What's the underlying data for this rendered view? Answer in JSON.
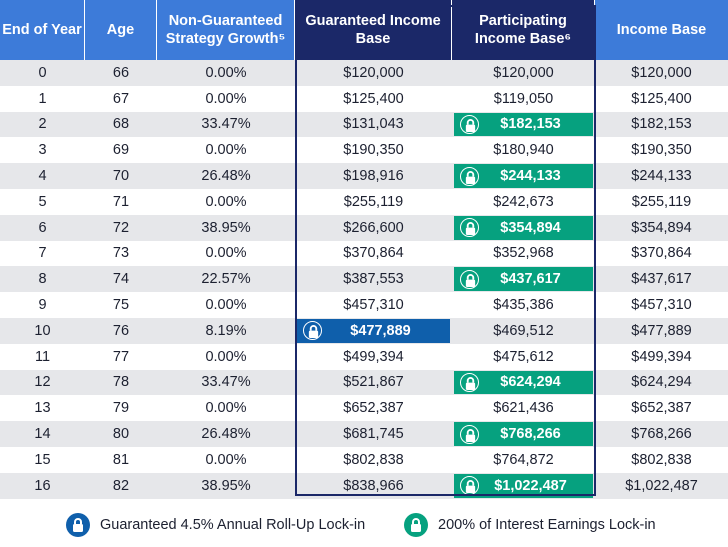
{
  "headers": [
    "End of Year",
    "Age",
    "Non-Guaranteed Strategy Growth⁵",
    "Guaranteed Income Base",
    "Participating Income Base⁶",
    "Income Base"
  ],
  "rows": [
    {
      "year": "0",
      "age": "66",
      "growth": "0.00%",
      "guaranteed": "$120,000",
      "participating": "$120,000",
      "income": "$120,000",
      "lock": ""
    },
    {
      "year": "1",
      "age": "67",
      "growth": "0.00%",
      "guaranteed": "$125,400",
      "participating": "$119,050",
      "income": "$125,400",
      "lock": ""
    },
    {
      "year": "2",
      "age": "68",
      "growth": "33.47%",
      "guaranteed": "$131,043",
      "participating": "$182,153",
      "income": "$182,153",
      "lock": "participating"
    },
    {
      "year": "3",
      "age": "69",
      "growth": "0.00%",
      "guaranteed": "$190,350",
      "participating": "$180,940",
      "income": "$190,350",
      "lock": ""
    },
    {
      "year": "4",
      "age": "70",
      "growth": "26.48%",
      "guaranteed": "$198,916",
      "participating": "$244,133",
      "income": "$244,133",
      "lock": "participating"
    },
    {
      "year": "5",
      "age": "71",
      "growth": "0.00%",
      "guaranteed": "$255,119",
      "participating": "$242,673",
      "income": "$255,119",
      "lock": ""
    },
    {
      "year": "6",
      "age": "72",
      "growth": "38.95%",
      "guaranteed": "$266,600",
      "participating": "$354,894",
      "income": "$354,894",
      "lock": "participating"
    },
    {
      "year": "7",
      "age": "73",
      "growth": "0.00%",
      "guaranteed": "$370,864",
      "participating": "$352,968",
      "income": "$370,864",
      "lock": ""
    },
    {
      "year": "8",
      "age": "74",
      "growth": "22.57%",
      "guaranteed": "$387,553",
      "participating": "$437,617",
      "income": "$437,617",
      "lock": "participating"
    },
    {
      "year": "9",
      "age": "75",
      "growth": "0.00%",
      "guaranteed": "$457,310",
      "participating": "$435,386",
      "income": "$457,310",
      "lock": ""
    },
    {
      "year": "10",
      "age": "76",
      "growth": "8.19%",
      "guaranteed": "$477,889",
      "participating": "$469,512",
      "income": "$477,889",
      "lock": "guaranteed"
    },
    {
      "year": "11",
      "age": "77",
      "growth": "0.00%",
      "guaranteed": "$499,394",
      "participating": "$475,612",
      "income": "$499,394",
      "lock": ""
    },
    {
      "year": "12",
      "age": "78",
      "growth": "33.47%",
      "guaranteed": "$521,867",
      "participating": "$624,294",
      "income": "$624,294",
      "lock": "participating"
    },
    {
      "year": "13",
      "age": "79",
      "growth": "0.00%",
      "guaranteed": "$652,387",
      "participating": "$621,436",
      "income": "$652,387",
      "lock": ""
    },
    {
      "year": "14",
      "age": "80",
      "growth": "26.48%",
      "guaranteed": "$681,745",
      "participating": "$768,266",
      "income": "$768,266",
      "lock": "participating"
    },
    {
      "year": "15",
      "age": "81",
      "growth": "0.00%",
      "guaranteed": "$802,838",
      "participating": "$764,872",
      "income": "$802,838",
      "lock": ""
    },
    {
      "year": "16",
      "age": "82",
      "growth": "38.95%",
      "guaranteed": "$838,966",
      "participating": "$1,022,487",
      "income": "$1,022,487",
      "lock": "participating"
    }
  ],
  "legend": {
    "guaranteed": "Guaranteed 4.5% Annual Roll-Up Lock-in",
    "participating": "200% of Interest Earnings Lock-in"
  },
  "colors": {
    "header_light": "#3d7bd9",
    "header_dark": "#1b2868",
    "lock_green": "#06a17f",
    "lock_blue": "#0f5fab",
    "row_alt": "#e6e7ea"
  }
}
